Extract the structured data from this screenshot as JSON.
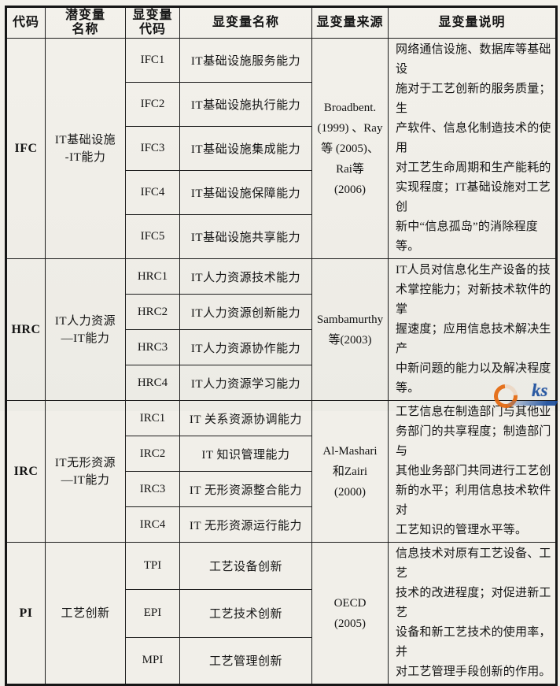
{
  "table": {
    "headers": [
      "代码",
      "潜变量\n名称",
      "显变量\n代码",
      "显变量名称",
      "显变量来源",
      "显变量说明"
    ],
    "groups": [
      {
        "code": "IFC",
        "latent": "IT基础设施\n-IT能力",
        "rows": [
          {
            "code": "IFC1",
            "name": "IT基础设施服务能力"
          },
          {
            "code": "IFC2",
            "name": "IT基础设施执行能力"
          },
          {
            "code": "IFC3",
            "name": "IT基础设施集成能力"
          },
          {
            "code": "IFC4",
            "name": "IT基础设施保障能力"
          },
          {
            "code": "IFC5",
            "name": "IT基础设施共享能力"
          }
        ],
        "source": "Broadbent.\n(1999) 、Ray\n等 (2005)、\nRai等\n(2006)",
        "description": "网络通信设施、数据库等基础设\n施对于工艺创新的服务质量；生\n产软件、信息化制造技术的使用\n对工艺生命周期和生产能耗的\n实现程度；IT基础设施对工艺创\n新中“信息孤岛”的消除程度等。"
      },
      {
        "code": "HRC",
        "latent": "IT人力资源\n—IT能力",
        "rows": [
          {
            "code": "HRC1",
            "name": "IT人力资源技术能力"
          },
          {
            "code": "HRC2",
            "name": "IT人力资源创新能力"
          },
          {
            "code": "HRC3",
            "name": "IT人力资源协作能力"
          },
          {
            "code": "HRC4",
            "name": "IT人力资源学习能力"
          }
        ],
        "source": "Sambamurthy\n等(2003)",
        "description": "IT人员对信息化生产设备的技\n术掌控能力；对新技术软件的掌\n握速度；应用信息技术解决生产\n中新问题的能力以及解决程度\n等。"
      },
      {
        "code": "IRC",
        "latent": "IT无形资源\n—IT能力",
        "rows": [
          {
            "code": "IRC1",
            "name": "IT 关系资源协调能力"
          },
          {
            "code": "IRC2",
            "name": "IT 知识管理能力"
          },
          {
            "code": "IRC3",
            "name": "IT 无形资源整合能力"
          },
          {
            "code": "IRC4",
            "name": "IT 无形资源运行能力"
          }
        ],
        "source": "Al-Mashari\n和Zairi\n(2000)",
        "description": "工艺信息在制造部门与其他业\n务部门的共享程度；制造部门与\n其他业务部门共同进行工艺创\n新的水平；利用信息技术软件对\n工艺知识的管理水平等。"
      },
      {
        "code": "PI",
        "latent": "工艺创新",
        "rows": [
          {
            "code": "TPI",
            "name": "工艺设备创新"
          },
          {
            "code": "EPI",
            "name": "工艺技术创新"
          },
          {
            "code": "MPI",
            "name": "工艺管理创新"
          }
        ],
        "source": "OECD\n(2005)",
        "description": "信息技术对原有工艺设备、工艺\n技术的改进程度；对促进新工艺\n设备和新工艺技术的使用率，并\n对工艺管理手段创新的作用。"
      }
    ]
  },
  "watermark": {
    "text": "ks",
    "orange": "#e5690f",
    "blue": "#1c4f9e"
  }
}
